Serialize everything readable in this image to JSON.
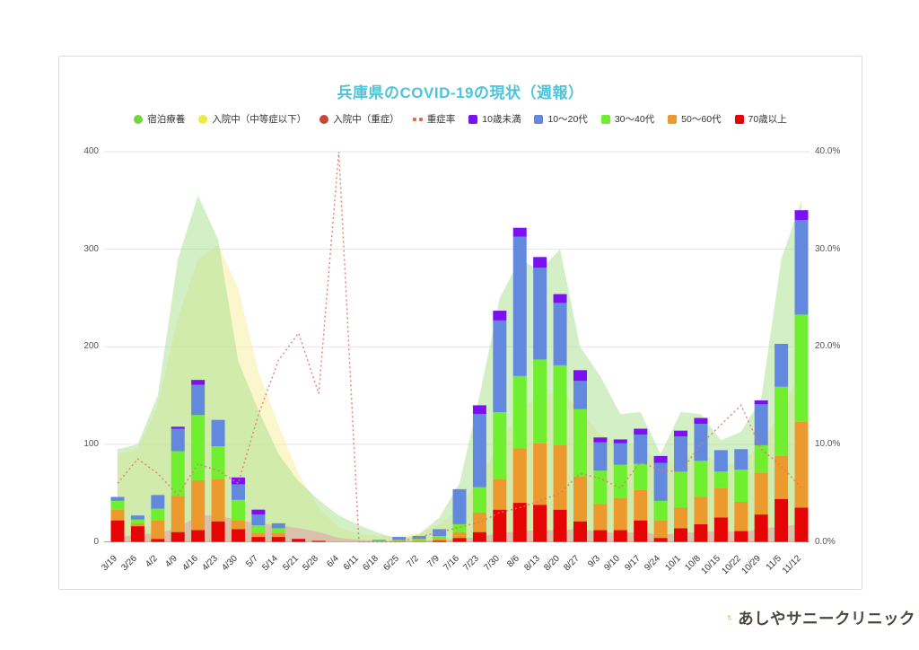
{
  "title": "兵庫県のCOVID-19の現状（週報）",
  "accent_color": "#4ec3da",
  "legend": [
    {
      "label": "宿泊療養",
      "marker": "circle",
      "color": "#72d53c"
    },
    {
      "label": "入院中（中等症以下）",
      "marker": "circle",
      "color": "#ede940"
    },
    {
      "label": "入院中（重症）",
      "marker": "circle",
      "color": "#c4473a"
    },
    {
      "label": "重症率",
      "marker": "dots",
      "color": "#e0645a"
    },
    {
      "label": "10歳未満",
      "marker": "square",
      "color": "#7b10f0"
    },
    {
      "label": "10〜20代",
      "marker": "square",
      "color": "#6289de"
    },
    {
      "label": "30〜40代",
      "marker": "square",
      "color": "#70ee30"
    },
    {
      "label": "50〜60代",
      "marker": "square",
      "color": "#ec9a2d"
    },
    {
      "label": "70歳以上",
      "marker": "square",
      "color": "#e50505"
    }
  ],
  "chart_data": {
    "type": "combo-stacked-bar-area-line",
    "categories": [
      "3/19",
      "3/26",
      "4/2",
      "4/9",
      "4/16",
      "4/23",
      "4/30",
      "5/7",
      "5/14",
      "5/21",
      "5/28",
      "6/4",
      "6/11",
      "6/18",
      "6/25",
      "7/2",
      "7/9",
      "7/16",
      "7/23",
      "7/30",
      "8/6",
      "8/13",
      "8/20",
      "8/27",
      "9/3",
      "9/10",
      "9/17",
      "9/24",
      "10/1",
      "10/8",
      "10/15",
      "10/22",
      "10/29",
      "11/5",
      "11/12"
    ],
    "left_axis": {
      "ticks": [
        0,
        100,
        200,
        300,
        400
      ],
      "max": 400
    },
    "right_axis": {
      "ticks": [
        "0.0%",
        "10.0%",
        "20.0%",
        "30.0%",
        "40.0%"
      ],
      "max": 40
    },
    "area_series": [
      {
        "name": "入院中（中等症以下）",
        "fill": "#f7efa0",
        "opacity": 0.55,
        "values": [
          90,
          95,
          140,
          230,
          290,
          305,
          260,
          175,
          120,
          70,
          35,
          15,
          8,
          6,
          6,
          9,
          18,
          35,
          65,
          100,
          135,
          150,
          155,
          135,
          110,
          100,
          100,
          80,
          88,
          92,
          78,
          82,
          100,
          135,
          175
        ]
      },
      {
        "name": "宿泊療養",
        "fill": "#a8e08e",
        "opacity": 0.5,
        "values": [
          95,
          100,
          150,
          290,
          355,
          310,
          185,
          135,
          90,
          62,
          43,
          27,
          17,
          9,
          3,
          8,
          25,
          60,
          150,
          250,
          290,
          278,
          300,
          200,
          170,
          131,
          133,
          90,
          133,
          131,
          104,
          113,
          147,
          290,
          350
        ]
      },
      {
        "name": "入院中（重症）",
        "fill": "#dfa5ac",
        "opacity": 0.6,
        "values": [
          5,
          7,
          9,
          14,
          27,
          27,
          22,
          19,
          17,
          14,
          10,
          4,
          2,
          1,
          1,
          1,
          2,
          3,
          5,
          9,
          11,
          12,
          12,
          13,
          10,
          9,
          10,
          7,
          9,
          10,
          11,
          10,
          13,
          16,
          18
        ]
      }
    ],
    "bar_series": [
      {
        "name": "70歳以上",
        "color": "#e50505",
        "values": [
          22,
          16,
          3,
          10,
          12,
          21,
          13,
          5,
          5,
          3,
          1,
          0,
          0,
          0,
          0,
          0,
          1,
          4,
          10,
          33,
          40,
          38,
          33,
          21,
          12,
          12,
          22,
          4,
          14,
          18,
          25,
          11,
          28,
          44,
          35
        ]
      },
      {
        "name": "50〜60代",
        "color": "#ec9a2d",
        "values": [
          11,
          3,
          19,
          37,
          51,
          43,
          9,
          4,
          4,
          0,
          0,
          0,
          0,
          0,
          1,
          1,
          2,
          6,
          20,
          31,
          56,
          63,
          66,
          46,
          27,
          33,
          31,
          18,
          21,
          28,
          30,
          30,
          43,
          44,
          88
        ]
      },
      {
        "name": "30〜40代",
        "color": "#70ee30",
        "values": [
          9,
          4,
          12,
          46,
          67,
          34,
          21,
          8,
          5,
          0,
          0,
          0,
          0,
          1,
          1,
          2,
          3,
          8,
          26,
          69,
          74,
          86,
          82,
          69,
          34,
          34,
          27,
          20,
          37,
          37,
          17,
          33,
          28,
          71,
          110
        ]
      },
      {
        "name": "10〜20代",
        "color": "#6289de",
        "values": [
          4,
          4,
          14,
          23,
          31,
          27,
          16,
          11,
          5,
          0,
          0,
          0,
          0,
          1,
          3,
          3,
          7,
          36,
          75,
          94,
          143,
          94,
          64,
          29,
          29,
          22,
          30,
          39,
          36,
          38,
          22,
          21,
          42,
          44,
          97
        ]
      },
      {
        "name": "10歳未満",
        "color": "#7b10f0",
        "values": [
          0,
          0,
          0,
          2,
          5,
          0,
          7,
          5,
          0,
          0,
          0,
          0,
          0,
          0,
          0,
          0,
          0,
          0,
          9,
          10,
          9,
          11,
          9,
          11,
          5,
          4,
          6,
          7,
          6,
          6,
          0,
          0,
          4,
          0,
          10
        ]
      }
    ],
    "line_series": {
      "name": "重症率",
      "color": "#e57368",
      "unit": "%",
      "values": [
        6.0,
        8.5,
        7.0,
        4.8,
        8.0,
        7.3,
        6.0,
        13.0,
        18.6,
        21.4,
        15.2,
        40.0,
        0,
        0,
        0,
        0.5,
        1.0,
        1.5,
        2.0,
        3.0,
        3.5,
        4.2,
        5.0,
        7.0,
        6.5,
        5.5,
        8.2,
        7.3,
        7.2,
        10.0,
        12.0,
        14.0,
        9.5,
        7.8,
        5.5
      ]
    }
  },
  "footer_logo": {
    "sun_text": "Sunny",
    "clinic_name": "あしやサニークリニック"
  }
}
